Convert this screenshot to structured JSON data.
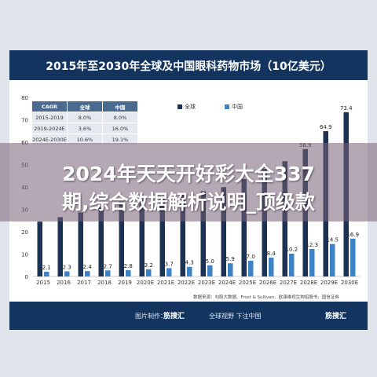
{
  "title": "2015年至2030年全球及中国眼科药物市场（10亿美元）",
  "overlay_lines": [
    "2024年天天开好彩大全337",
    "期,综合数据解析说明_顶级款"
  ],
  "footer": {
    "pic_label": "图片制作：",
    "logo1": "筋搜汇",
    "tagline": "全球视野 下注中国",
    "logo2": "筋搜汇"
  },
  "source": "数据来源：勾股大数据、Frost & Sullivan、欧康维视生物招股书、国信证券",
  "cagr_table": {
    "header": [
      "CAGR",
      "全球",
      "中国"
    ],
    "rows": [
      [
        "2015-2019",
        "8.0%",
        "8.0%"
      ],
      [
        "2019-2024E",
        "3.6%",
        "16.0%"
      ],
      [
        "2024E-2030E",
        "10.6%",
        "19.1%"
      ]
    ]
  },
  "colors": {
    "global": "#1b3252",
    "china": "#3c82c4"
  },
  "chart_data": {
    "type": "bar",
    "categories": [
      "2015",
      "2016",
      "2017",
      "2018",
      "2019",
      "2020E",
      "2021E",
      "2022E",
      "2023E",
      "2024E",
      "2025E",
      "2026E",
      "2027E",
      "2028E",
      "2029E",
      "2030E"
    ],
    "series": [
      {
        "name": "全球",
        "values": [
          24.5,
          26.5,
          28.6,
          30.8,
          33.5,
          34.4,
          35.3,
          36.7,
          38.1,
          39.9,
          43.5,
          48.0,
          51.5,
          56.9,
          64.9,
          73.4
        ]
      },
      {
        "name": "中国",
        "values": [
          2.1,
          2.3,
          2.4,
          2.7,
          2.8,
          3.2,
          3.7,
          4.3,
          5.0,
          5.9,
          7.0,
          8.4,
          10.2,
          12.3,
          14.5,
          16.9
        ]
      }
    ],
    "data_labels": {
      "全球": [
        "",
        "",
        "",
        "",
        "",
        "",
        "",
        "",
        "",
        "",
        "",
        "",
        "",
        "56.9",
        "64.9",
        "73.4"
      ],
      "中国": [
        "2.1",
        "2.3",
        "2.4",
        "2.7",
        "2.8",
        "3.2",
        "3.7",
        "4.3",
        "5.0",
        "5.9",
        "7.0",
        "8.4",
        "10.2",
        "12.3",
        "14.5",
        "16.9"
      ]
    },
    "yticks": [
      "0",
      "10",
      "20",
      "30",
      "40",
      "50",
      "60",
      "70",
      "80"
    ],
    "ylim": [
      0,
      80
    ],
    "legend": "top-right",
    "grid": false
  }
}
